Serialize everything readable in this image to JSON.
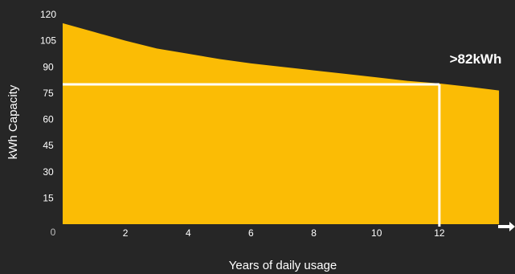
{
  "chart_data": {
    "type": "area",
    "title": "",
    "xlabel": "Years of daily usage",
    "ylabel": "kWh Capacity",
    "origin_label": "0",
    "x_ticks": [
      2,
      4,
      6,
      8,
      10,
      12
    ],
    "y_ticks": [
      15,
      30,
      45,
      60,
      75,
      90,
      105,
      120
    ],
    "xlim": [
      0,
      14
    ],
    "ylim": [
      0,
      120
    ],
    "series": [
      {
        "x": [
          0,
          1,
          2,
          3,
          4,
          5,
          6,
          7,
          8,
          9,
          10,
          11,
          12,
          13,
          13.9
        ],
        "values": [
          115,
          110,
          105,
          100.5,
          97.5,
          94.5,
          92,
          90,
          88,
          86,
          84,
          82,
          80.5,
          78.5,
          76.5
        ]
      }
    ],
    "marker": {
      "x": 12,
      "y": 80,
      "label": ">82kWh"
    },
    "colors": {
      "fill": "#fbbc05",
      "background": "#262626",
      "marker_line": "#ffffff",
      "text": "#ffffff"
    }
  }
}
